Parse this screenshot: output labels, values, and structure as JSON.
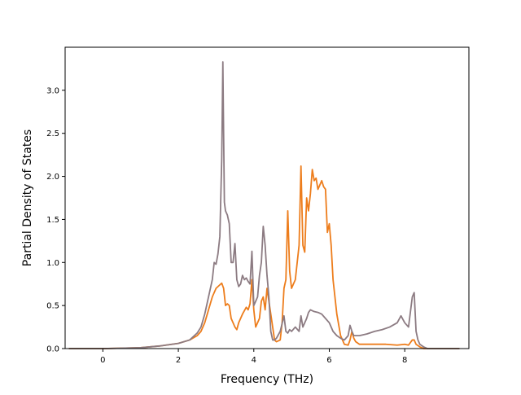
{
  "chart_data": {
    "type": "line",
    "title": "",
    "xlabel": "Frequency (THz)",
    "ylabel": "Partial Density of States",
    "xlim": [
      -1.0,
      9.7
    ],
    "ylim": [
      0.0,
      3.5
    ],
    "xticks": [
      0,
      2,
      4,
      6,
      8
    ],
    "yticks": [
      0.0,
      0.5,
      1.0,
      1.5,
      2.0,
      2.5,
      3.0
    ],
    "xtick_labels": [
      "0",
      "2",
      "4",
      "6",
      "8"
    ],
    "ytick_labels": [
      "0.0",
      "0.5",
      "1.0",
      "1.5",
      "2.0",
      "2.5",
      "3.0"
    ],
    "grid": false,
    "legend": null,
    "series": [
      {
        "color": "#ed7d1c",
        "x": [
          -0.9,
          0.0,
          0.5,
          1.0,
          1.5,
          2.0,
          2.3,
          2.5,
          2.6,
          2.7,
          2.8,
          2.9,
          3.0,
          3.1,
          3.15,
          3.2,
          3.25,
          3.3,
          3.35,
          3.4,
          3.45,
          3.5,
          3.55,
          3.6,
          3.7,
          3.8,
          3.85,
          3.9,
          3.95,
          4.0,
          4.05,
          4.1,
          4.15,
          4.2,
          4.25,
          4.3,
          4.35,
          4.4,
          4.45,
          4.5,
          4.55,
          4.6,
          4.7,
          4.75,
          4.8,
          4.85,
          4.9,
          4.95,
          5.0,
          5.1,
          5.15,
          5.2,
          5.25,
          5.3,
          5.35,
          5.4,
          5.45,
          5.5,
          5.55,
          5.6,
          5.65,
          5.7,
          5.75,
          5.8,
          5.85,
          5.9,
          5.95,
          6.0,
          6.05,
          6.1,
          6.2,
          6.3,
          6.4,
          6.5,
          6.55,
          6.6,
          6.65,
          6.7,
          6.8,
          7.0,
          7.5,
          7.8,
          8.0,
          8.1,
          8.2,
          8.25,
          8.3,
          8.4,
          8.5,
          8.6,
          9.0,
          9.45
        ],
        "y": [
          0.0,
          0.0,
          0.005,
          0.01,
          0.03,
          0.06,
          0.1,
          0.15,
          0.2,
          0.3,
          0.45,
          0.6,
          0.7,
          0.74,
          0.76,
          0.7,
          0.5,
          0.52,
          0.5,
          0.35,
          0.3,
          0.25,
          0.22,
          0.3,
          0.4,
          0.48,
          0.45,
          0.52,
          0.8,
          0.45,
          0.25,
          0.3,
          0.35,
          0.55,
          0.6,
          0.45,
          0.7,
          0.55,
          0.4,
          0.25,
          0.1,
          0.08,
          0.1,
          0.3,
          0.7,
          0.8,
          1.6,
          0.9,
          0.7,
          0.8,
          1.0,
          1.2,
          2.12,
          1.2,
          1.12,
          1.75,
          1.6,
          1.8,
          2.08,
          1.95,
          1.98,
          1.85,
          1.9,
          1.95,
          1.88,
          1.85,
          1.35,
          1.45,
          1.2,
          0.8,
          0.4,
          0.15,
          0.05,
          0.04,
          0.1,
          0.2,
          0.12,
          0.08,
          0.05,
          0.05,
          0.05,
          0.04,
          0.05,
          0.04,
          0.1,
          0.1,
          0.05,
          0.02,
          0.0,
          0.0,
          0.0,
          0.0
        ]
      },
      {
        "color": "#8c7b82",
        "x": [
          -0.9,
          0.0,
          0.5,
          1.0,
          1.5,
          2.0,
          2.3,
          2.5,
          2.6,
          2.7,
          2.8,
          2.9,
          2.95,
          3.0,
          3.05,
          3.1,
          3.15,
          3.18,
          3.2,
          3.22,
          3.25,
          3.3,
          3.35,
          3.4,
          3.45,
          3.5,
          3.55,
          3.6,
          3.65,
          3.7,
          3.75,
          3.8,
          3.85,
          3.9,
          3.95,
          4.0,
          4.05,
          4.1,
          4.15,
          4.2,
          4.25,
          4.3,
          4.35,
          4.4,
          4.45,
          4.5,
          4.55,
          4.6,
          4.7,
          4.8,
          4.85,
          4.9,
          4.95,
          5.0,
          5.1,
          5.2,
          5.25,
          5.3,
          5.35,
          5.4,
          5.45,
          5.5,
          5.6,
          5.7,
          5.8,
          5.9,
          6.0,
          6.1,
          6.2,
          6.3,
          6.4,
          6.5,
          6.55,
          6.6,
          6.65,
          6.7,
          6.8,
          7.0,
          7.2,
          7.4,
          7.6,
          7.8,
          7.9,
          8.0,
          8.1,
          8.2,
          8.25,
          8.3,
          8.35,
          8.4,
          8.5,
          8.6,
          9.0,
          9.45
        ],
        "y": [
          0.0,
          0.0,
          0.005,
          0.01,
          0.03,
          0.06,
          0.1,
          0.18,
          0.25,
          0.4,
          0.6,
          0.8,
          1.0,
          0.98,
          1.1,
          1.3,
          2.2,
          3.33,
          2.5,
          1.7,
          1.6,
          1.55,
          1.45,
          1.0,
          1.0,
          1.22,
          0.8,
          0.72,
          0.75,
          0.85,
          0.8,
          0.82,
          0.78,
          0.75,
          1.13,
          0.5,
          0.55,
          0.6,
          0.85,
          1.0,
          1.42,
          1.2,
          0.85,
          0.6,
          0.2,
          0.1,
          0.1,
          0.12,
          0.2,
          0.38,
          0.2,
          0.18,
          0.22,
          0.2,
          0.25,
          0.2,
          0.38,
          0.25,
          0.3,
          0.35,
          0.42,
          0.45,
          0.43,
          0.42,
          0.4,
          0.35,
          0.3,
          0.2,
          0.15,
          0.12,
          0.1,
          0.15,
          0.27,
          0.2,
          0.15,
          0.15,
          0.15,
          0.17,
          0.2,
          0.22,
          0.25,
          0.3,
          0.38,
          0.3,
          0.25,
          0.6,
          0.65,
          0.2,
          0.1,
          0.05,
          0.02,
          0.0,
          0.0,
          0.0
        ]
      }
    ]
  }
}
